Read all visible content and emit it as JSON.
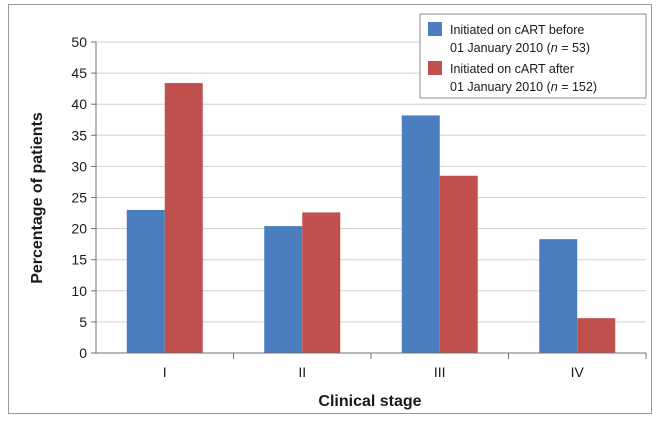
{
  "chart_data": {
    "type": "bar",
    "title": "",
    "xlabel": "Clinical stage",
    "ylabel": "Percentage of patients",
    "categories": [
      "I",
      "II",
      "III",
      "IV"
    ],
    "ylim": [
      0,
      50
    ],
    "yticks": [
      0,
      5,
      10,
      15,
      20,
      25,
      30,
      35,
      40,
      45,
      50
    ],
    "grid": true,
    "legend_position": "top-right",
    "series": [
      {
        "name": "Initiated on cART before 01 January 2010 (n = 53)",
        "legend_lines": [
          {
            "text": "Initiated on cART before"
          },
          {
            "prefix": "01 January 2010 (",
            "italic": "n",
            "suffix": " = 53)"
          }
        ],
        "color": "#4a7ebf",
        "values": [
          23.0,
          20.4,
          38.2,
          18.3
        ]
      },
      {
        "name": "Initiated on cART after 01 January 2010 (n = 152)",
        "legend_lines": [
          {
            "text": "Initiated on cART after"
          },
          {
            "prefix": "01 January 2010 (",
            "italic": "n",
            "suffix": " = 152)"
          }
        ],
        "color": "#c0504d",
        "values": [
          43.4,
          22.6,
          28.5,
          5.6
        ]
      }
    ]
  }
}
